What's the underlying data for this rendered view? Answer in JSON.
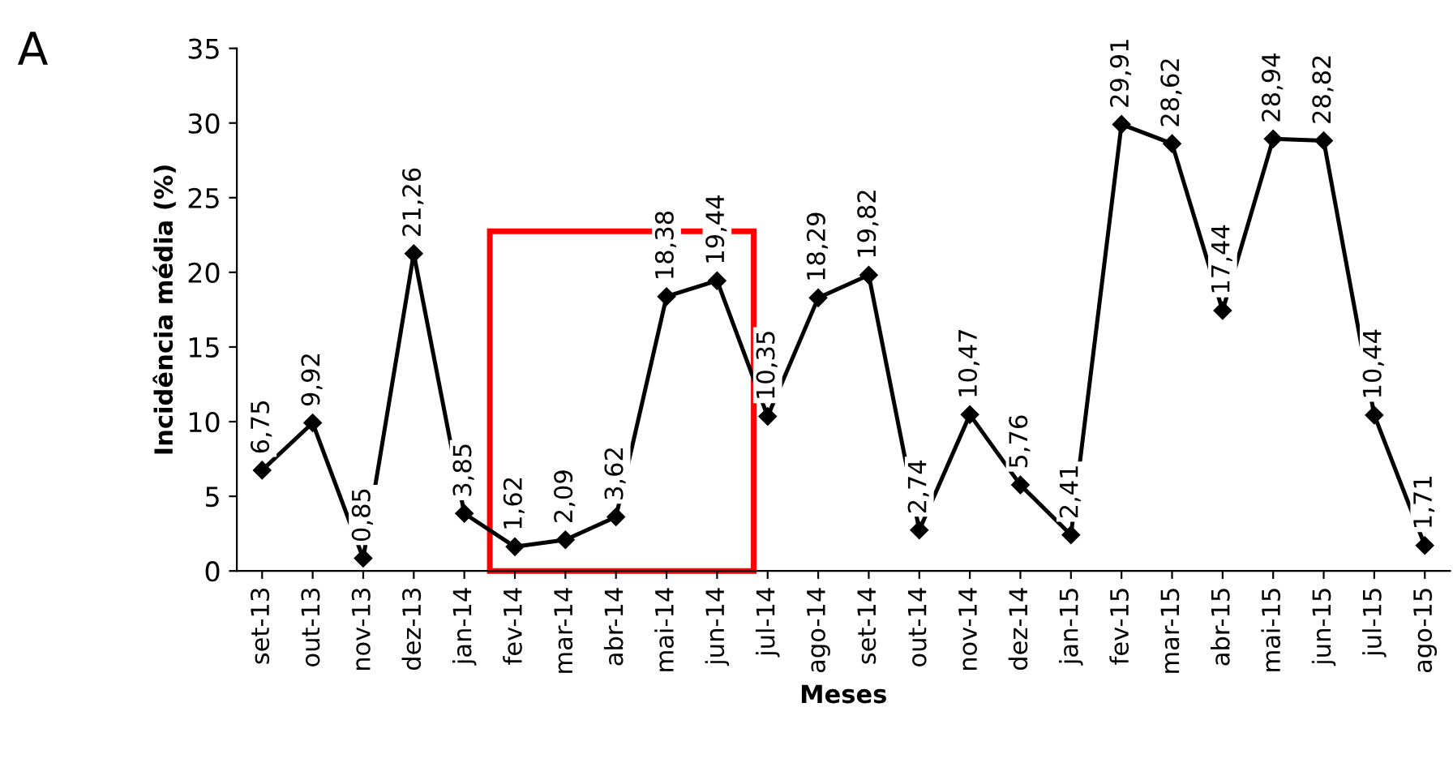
{
  "chart_data": {
    "type": "line",
    "ylabel": "Incidência média (%)",
    "xlabel": "Meses",
    "categories": [
      "set-13",
      "out-13",
      "nov-13",
      "dez-13",
      "jan-14",
      "fev-14",
      "mar-14",
      "abr-14",
      "mai-14",
      "jun-14",
      "jul-14",
      "ago-14",
      "set-14",
      "out-14",
      "nov-14",
      "dez-14",
      "jan-15",
      "fev-15",
      "mar-15",
      "abr-15",
      "mai-15",
      "jun-15",
      "jul-15",
      "ago-15"
    ],
    "series": [
      {
        "color": "#000000",
        "values": [
          6.75,
          9.92,
          0.85,
          21.26,
          3.85,
          1.62,
          2.09,
          3.62,
          18.38,
          19.44,
          10.35,
          18.29,
          19.82,
          2.74,
          10.47,
          5.76,
          2.41,
          29.91,
          28.62,
          17.44,
          28.94,
          28.82,
          10.44,
          1.71
        ],
        "value_labels": [
          "6,75",
          "9,92",
          "0,85",
          "21,26",
          "3,85",
          "1,62",
          "2,09",
          "3,62",
          "18,38",
          "19,44",
          "10,35",
          "18,29",
          "19,82",
          "2,74",
          "10,47",
          "5,76",
          "2,41",
          "29,91",
          "28,62",
          "17,44",
          "28,94",
          "28,82",
          "10,44",
          "1,71"
        ]
      }
    ],
    "ylim": [
      0,
      35
    ],
    "yticks": [
      0,
      5,
      10,
      15,
      20,
      25,
      30,
      35
    ],
    "grid": false,
    "legend": false,
    "marker": "diamond",
    "line_style": "solid",
    "annotations": [
      "A"
    ]
  }
}
